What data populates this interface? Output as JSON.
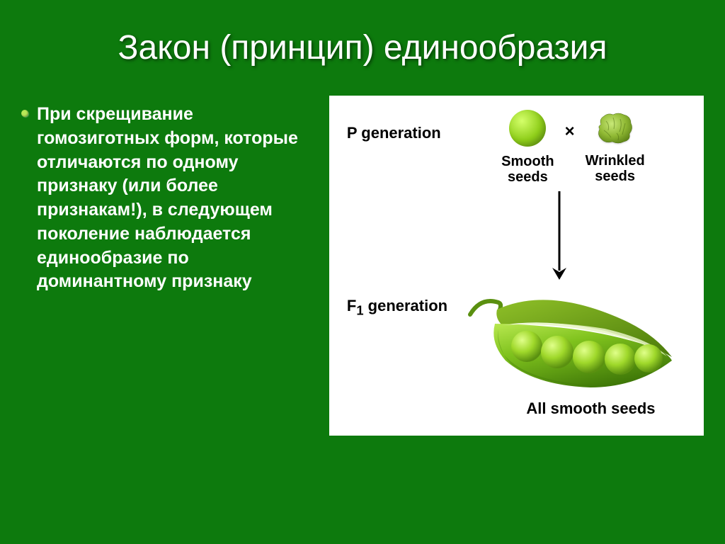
{
  "slide": {
    "background_color": "#0d7a0d",
    "title": "Закон (принцип) единообразия",
    "title_color": "#ffffff",
    "bullet_text": "При скрещивание гомозиготных форм, которые отличаются по одному признаку (или более признакам!), в следующем поколение наблюдается единообразие по доминантному признаку",
    "bullet_color": "#ffffff",
    "bullet_marker_color": "#b8e858"
  },
  "diagram": {
    "background": "#ffffff",
    "p_gen_label": "P generation",
    "smooth_label": "Smooth seeds",
    "wrinkled_label": "Wrinkled seeds",
    "cross_symbol": "×",
    "f1_label": "F₁ generation",
    "f1_caption": "All smooth seeds",
    "seed_colors": {
      "smooth_light": "#d4ff6a",
      "smooth_mid": "#8fce1a",
      "smooth_dark": "#5a9010",
      "wrinkled_light": "#aed64c",
      "wrinkled_dark": "#6b9b1f",
      "pod_light": "#a8db3c",
      "pod_mid": "#6fb518",
      "pod_dark": "#3f7808",
      "pod_inner": "#e8f5c4"
    },
    "arrow_color": "#000000",
    "arrow_length": 120,
    "pod_seed_count": 5
  }
}
